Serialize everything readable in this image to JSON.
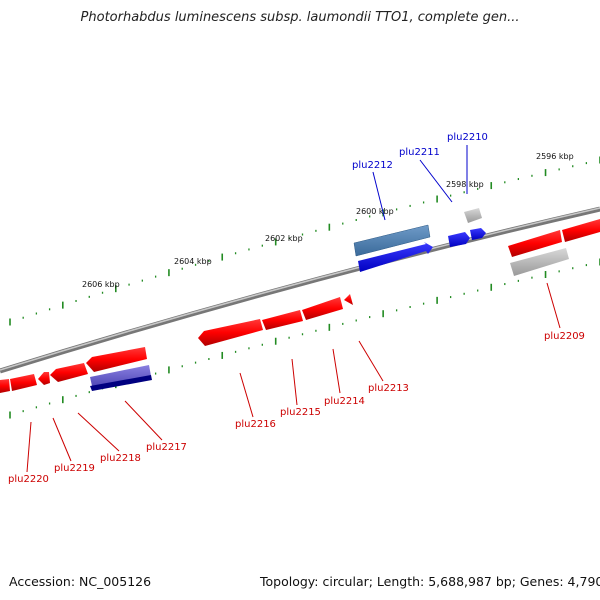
{
  "title": "Photorhabdus luminescens subsp. laumondii TTO1, complete gen...",
  "footer": {
    "accession": "Accession: NC_005126",
    "summary": "Topology: circular; Length: 5,688,987 bp; Genes: 4,790"
  },
  "scale": {
    "labels": [
      "2596 kbp",
      "2598 kbp",
      "2600 kbp",
      "2602 kbp",
      "2604 kbp",
      "2606 kbp"
    ]
  },
  "genes": {
    "plus": [
      "plu2212",
      "plu2211",
      "plu2210"
    ],
    "minus": [
      "plu2209",
      "plu2213",
      "plu2214",
      "plu2215",
      "plu2216",
      "plu2217",
      "plu2218",
      "plu2219",
      "plu2220"
    ]
  },
  "colors": {
    "backbone": "#8a8a8a",
    "minus_strand": "#ff0000",
    "plus_strand": "#0000ff",
    "minus_label": "#cc0000",
    "plus_label": "#0000cc",
    "tick": "#228b22",
    "steelblue": "#4a7db0",
    "purple": "#6a5acd",
    "navy": "#000080",
    "gray_gene": "#b8b8b8"
  }
}
